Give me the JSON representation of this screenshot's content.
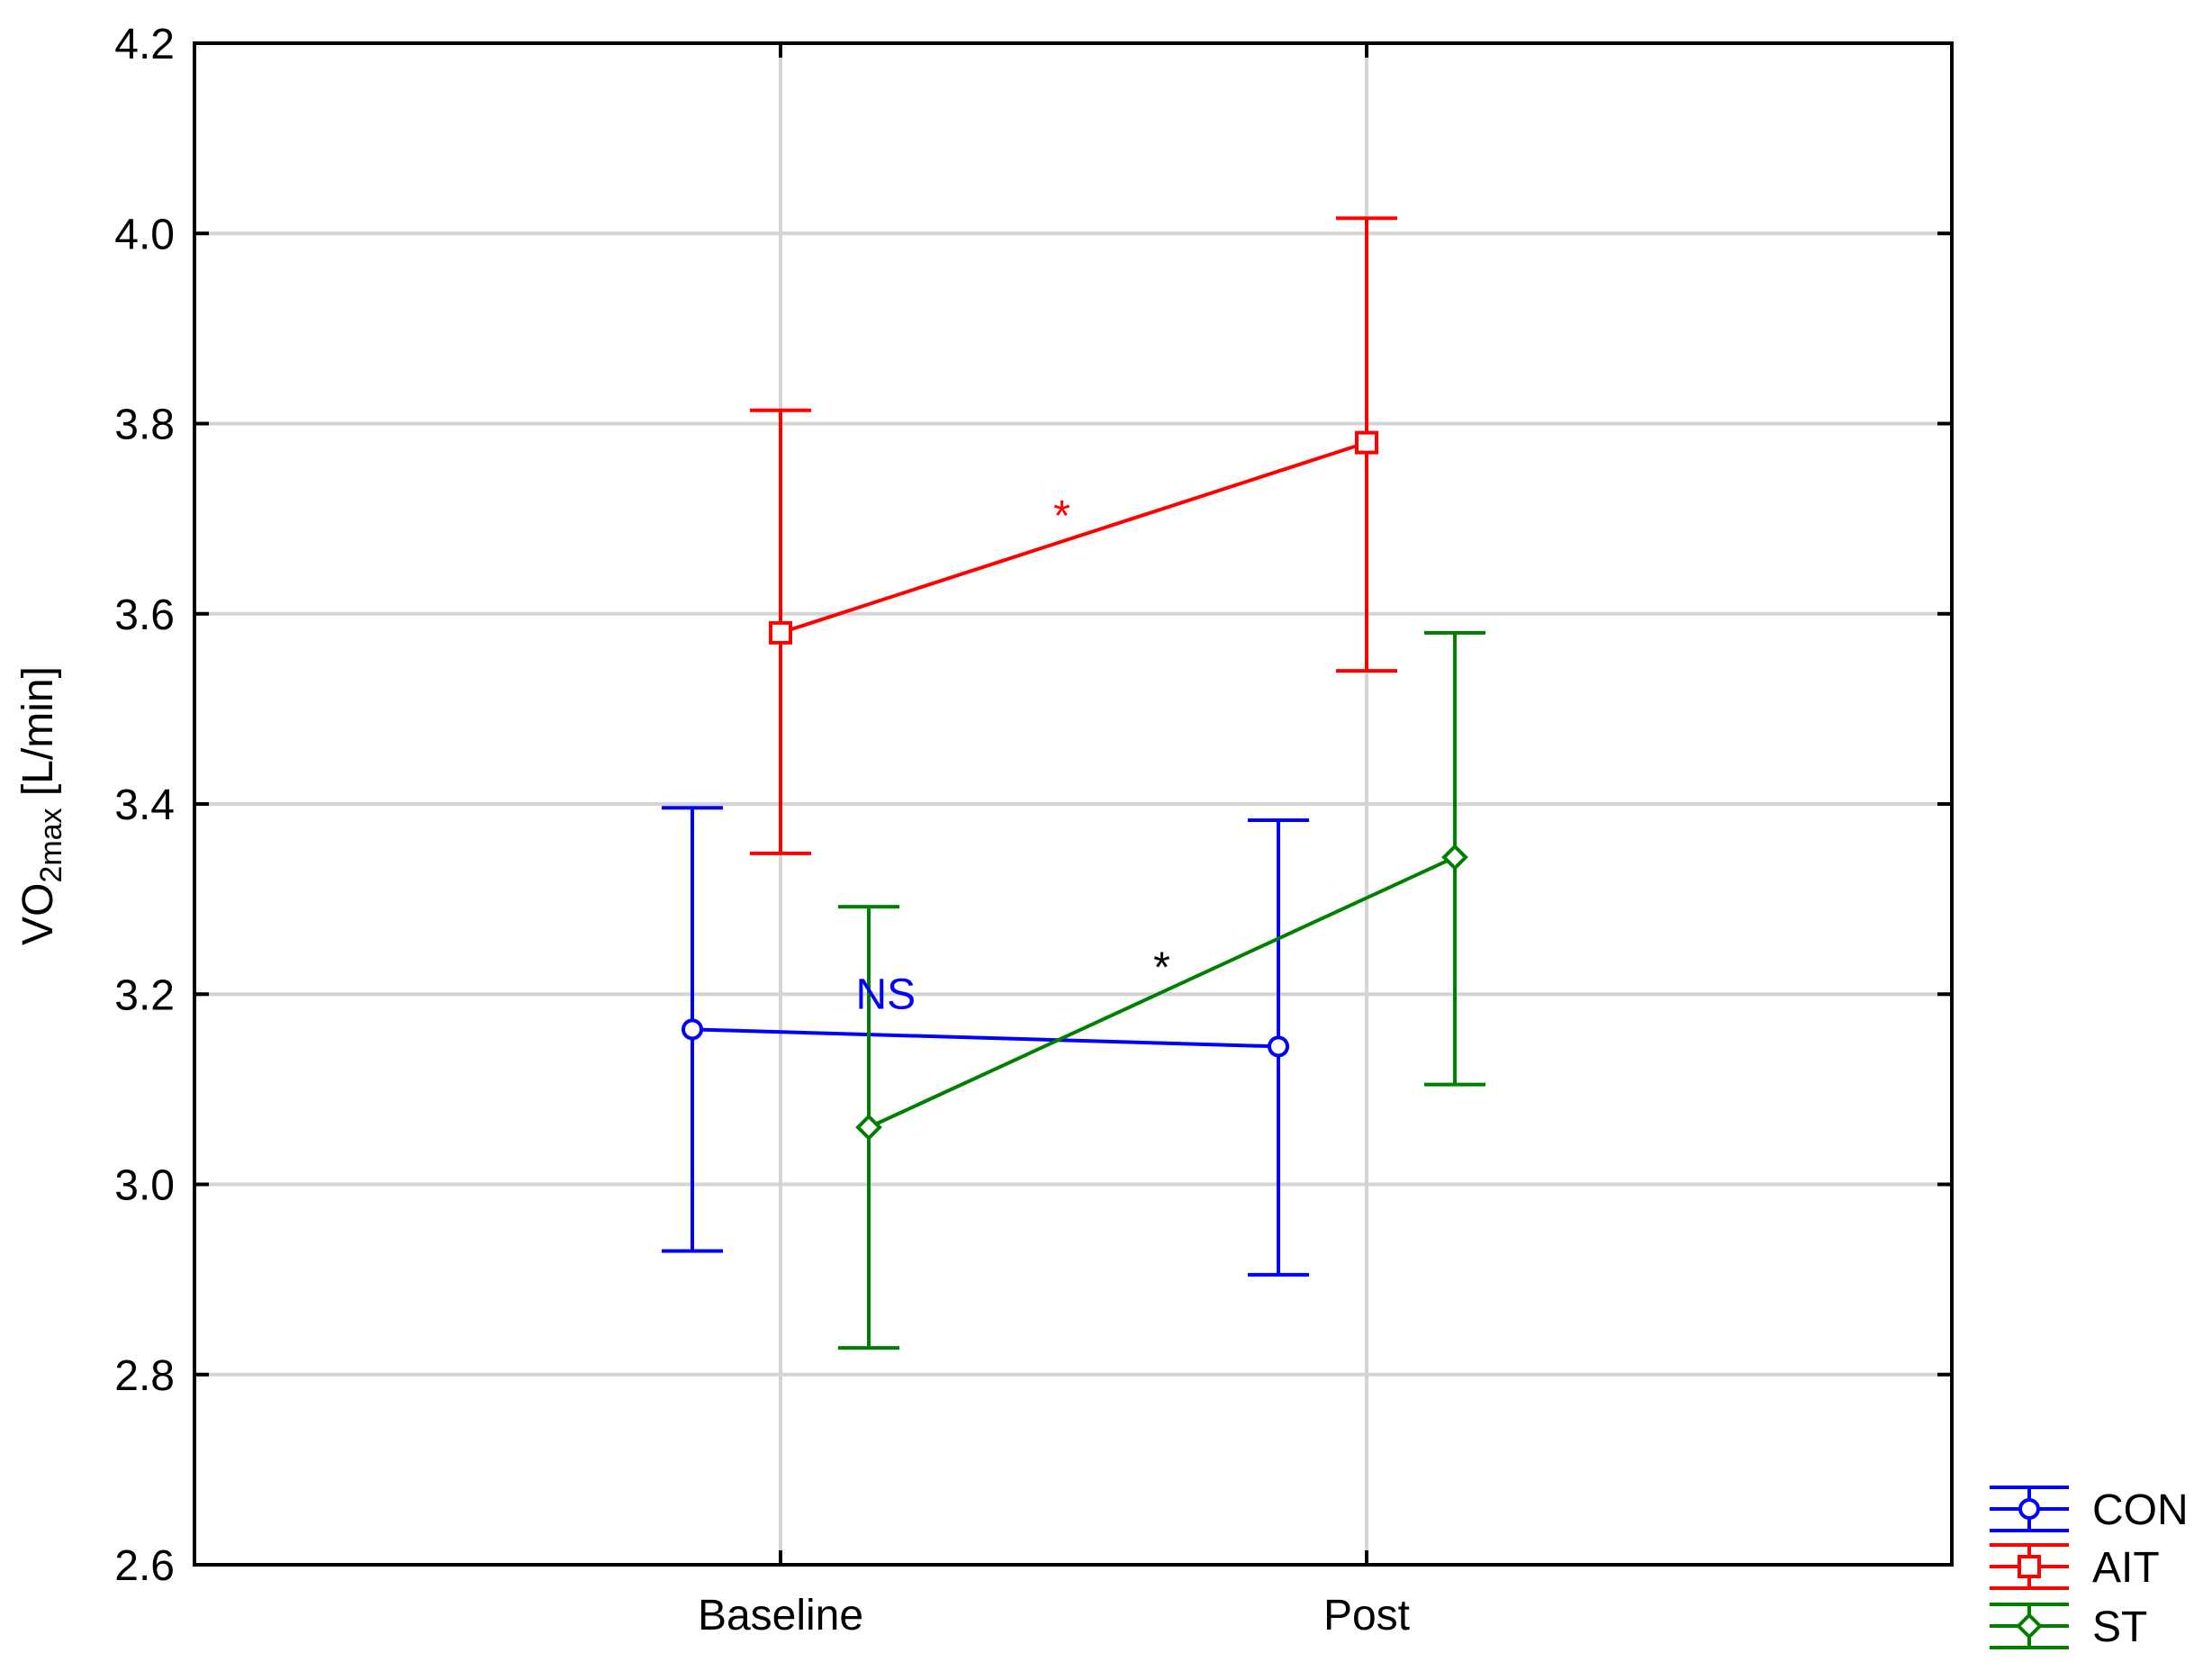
{
  "chart_data": {
    "type": "line",
    "title": "",
    "xlabel": "",
    "ylabel": "VO",
    "ylabel_subscript": "2max",
    "ylabel_unit": " [L/min]",
    "ylim": [
      2.6,
      4.2
    ],
    "yticks": [
      "2.6",
      "2.8",
      "3.0",
      "3.2",
      "3.4",
      "3.6",
      "3.8",
      "4.0",
      "4.2"
    ],
    "categories": [
      "Baseline",
      "Post"
    ],
    "grid": true,
    "legend_position": "bottom-right",
    "error_bars": true,
    "series": [
      {
        "name": "CON",
        "color": "#0000ff",
        "marker": "circle",
        "values": [
          3.163,
          3.145
        ],
        "lower": [
          2.93,
          2.905
        ],
        "upper": [
          3.396,
          3.383
        ]
      },
      {
        "name": "AIT",
        "color": "#ff0000",
        "marker": "square",
        "values": [
          3.58,
          3.78
        ],
        "lower": [
          3.348,
          3.54
        ],
        "upper": [
          3.814,
          4.016
        ]
      },
      {
        "name": "ST",
        "color": "#007f00",
        "marker": "diamond",
        "values": [
          3.06,
          3.344
        ],
        "lower": [
          2.828,
          3.105
        ],
        "upper": [
          3.292,
          3.58
        ]
      }
    ],
    "annotations": [
      {
        "text": "*",
        "color": "#ff0000",
        "series": "AIT",
        "y": 3.72
      },
      {
        "text": "NS",
        "color": "#0000ff",
        "series": "CON",
        "y": 3.2
      },
      {
        "text": "*",
        "color": "#000000",
        "series": "ST",
        "y": 3.245
      }
    ]
  }
}
